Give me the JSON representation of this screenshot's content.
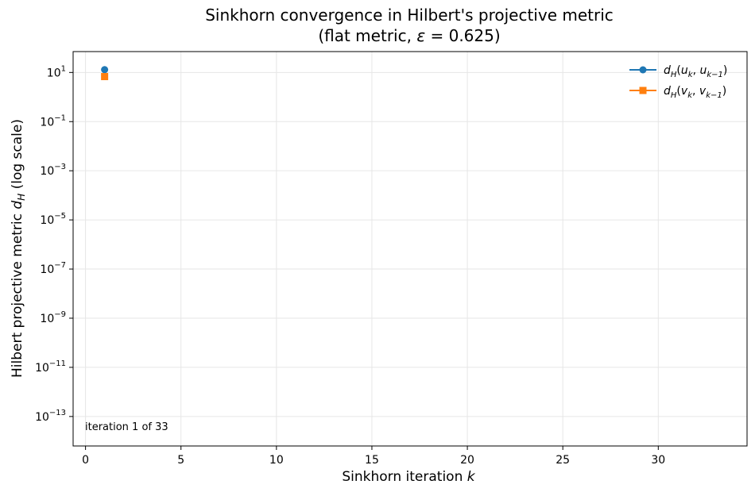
{
  "chart_data": {
    "type": "line",
    "title": "Sinkhorn convergence in Hilbert's projective metric",
    "subtitle": "(flat metric, ε = 0.625)",
    "xlabel": "Sinkhorn iteration k",
    "ylabel": "Hilbert projective metric d_H (log scale)",
    "xlim": [
      -0.65,
      34.65
    ],
    "ylim_log10": [
      -14.2,
      1.85
    ],
    "yscale": "log",
    "grid": true,
    "legend_position": "top-right",
    "x_ticks": [
      0,
      5,
      10,
      15,
      20,
      25,
      30
    ],
    "y_ticks": [
      {
        "exp": 1,
        "base": "10",
        "sup": "1"
      },
      {
        "exp": -1,
        "base": "10",
        "sup": "−1"
      },
      {
        "exp": -3,
        "base": "10",
        "sup": "−3"
      },
      {
        "exp": -5,
        "base": "10",
        "sup": "−5"
      },
      {
        "exp": -7,
        "base": "10",
        "sup": "−7"
      },
      {
        "exp": -9,
        "base": "10",
        "sup": "−9"
      },
      {
        "exp": -11,
        "base": "10",
        "sup": "−11"
      },
      {
        "exp": -13,
        "base": "10",
        "sup": "−13"
      }
    ],
    "series": [
      {
        "name": "d_H(u_k, u_{k−1})",
        "color": "#1f77b4",
        "marker": "circle",
        "x": [
          1
        ],
        "y": [
          13.0
        ]
      },
      {
        "name": "d_H(v_k, v_{k−1})",
        "color": "#ff7f0e",
        "marker": "square",
        "x": [
          1
        ],
        "y": [
          6.8
        ]
      }
    ],
    "annotation": "iteration 1 of 33"
  }
}
